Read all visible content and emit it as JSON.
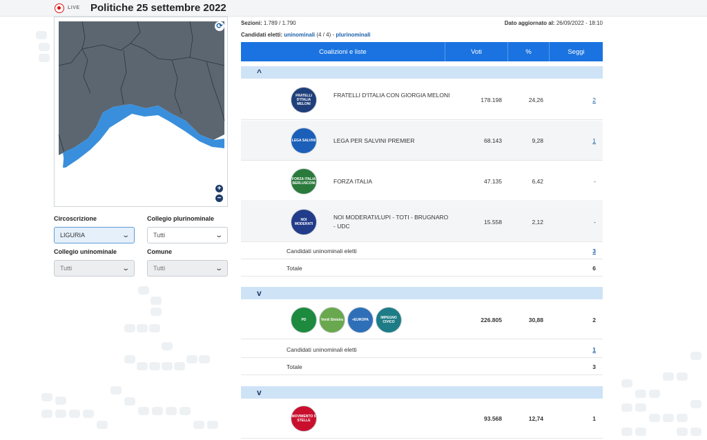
{
  "header": {
    "live_label": "LIVE",
    "title": "Politiche 25 settembre 2022"
  },
  "filters": {
    "circoscrizione": {
      "label": "Circoscrizione",
      "value": "LIGURIA"
    },
    "collegio_plurinominale": {
      "label": "Collegio plurinominale",
      "value": "Tutti"
    },
    "collegio_uninominale": {
      "label": "Collegio uninominale",
      "value": "Tutti"
    },
    "comune": {
      "label": "Comune",
      "value": "Tutti"
    }
  },
  "meta": {
    "sezioni_label": "Sezioni:",
    "sezioni_value": "1.789 / 1.790",
    "updated_label": "Dato aggiornato al:",
    "updated_value": "26/09/2022 - 18:10",
    "elected_label": "Candidati eletti:",
    "elected_uni": "uninominali",
    "elected_uni_count": "(4 / 4)",
    "elected_sep": "-",
    "elected_pluri": "plurinominali"
  },
  "table": {
    "headers": [
      "Coalizioni e liste",
      "Voti",
      "%",
      "Seggi"
    ],
    "groups": [
      {
        "chevron": "^",
        "rows": [
          {
            "logo": "FRATELLI D'ITALIA MELONI",
            "name": "FRATELLI D'ITALIA CON GIORGIA MELONI",
            "votes": "178.198",
            "pct": "24,26",
            "seats": "2"
          },
          {
            "logo": "LEGA SALVINI",
            "name": "LEGA PER SALVINI PREMIER",
            "votes": "68.143",
            "pct": "9,28",
            "seats": "1"
          },
          {
            "logo": "FORZA ITALIA BERLUSCONI",
            "name": "FORZA ITALIA",
            "votes": "47.135",
            "pct": "6,42",
            "seats": "-"
          },
          {
            "logo": "NOI MODERATI",
            "name": "NOI MODERATI/LUPI - TOTI - BRUGNARO - UDC",
            "votes": "15.558",
            "pct": "2,12",
            "seats": "-"
          }
        ],
        "uninominali_label": "Candidati uninominali eletti",
        "uninominali_value": "3",
        "total_label": "Totale",
        "total_value": "6"
      },
      {
        "chevron": "v",
        "logos": [
          "PD",
          "Verdi Sinistra",
          "+EUROPA",
          "IMPEGNO CIVICO"
        ],
        "votes": "226.805",
        "pct": "30,88",
        "seats": "2",
        "uninominali_label": "Candidati uninominali eletti",
        "uninominali_value": "1",
        "total_label": "Totale",
        "total_value": "3"
      },
      {
        "chevron": "v",
        "logos": [
          "MOVIMENTO 5 STELLE"
        ],
        "votes": "93.568",
        "pct": "12,74",
        "seats": "1"
      }
    ]
  },
  "icons": {
    "refresh": "⟳",
    "zoom_in": "+",
    "zoom_out": "−",
    "chevron_down": "⌄"
  },
  "colors": {
    "accent": "#1a73e0",
    "region_highlight": "#3a8fdc",
    "map_background": "#5b6670"
  }
}
